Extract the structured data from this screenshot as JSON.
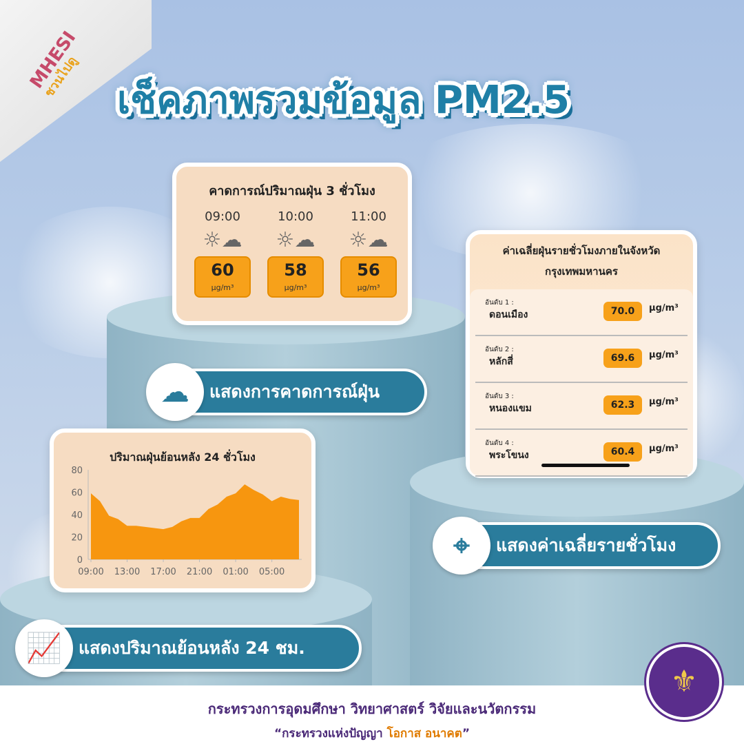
{
  "logo": {
    "line1": "MHESI",
    "line2": "ชวนไปดู"
  },
  "title": "เช็คภาพรวมข้อมูล PM2.5",
  "forecast": {
    "heading": "คาดการณ์ปริมาณฝุ่น 3 ชั่วโมง",
    "unit": "μg/m³",
    "items": [
      {
        "time": "09:00",
        "value": "60"
      },
      {
        "time": "10:00",
        "value": "58"
      },
      {
        "time": "11:00",
        "value": "56"
      }
    ],
    "icon": "sun-cloud-dust-icon"
  },
  "ranking": {
    "heading": "ค่าเฉลี่ยฝุ่นรายชั่วโมงภายในจังหวัด",
    "province": "กรุงเทพมหานคร",
    "unit": "μg/m³",
    "rows": [
      {
        "rank": "อันดับ 1 :",
        "district": "ดอนเมือง",
        "value": "70.0"
      },
      {
        "rank": "อันดับ 2 :",
        "district": "หลักสี่",
        "value": "69.6"
      },
      {
        "rank": "อันดับ 3 :",
        "district": "หนองแขม",
        "value": "62.3"
      },
      {
        "rank": "อันดับ 4 :",
        "district": "พระโขนง",
        "value": "60.4"
      }
    ]
  },
  "chart_data": {
    "type": "area",
    "title": "ปริมาณฝุ่นย้อนหลัง 24 ชั่วโมง",
    "xlabel": "",
    "ylabel": "",
    "x": [
      "09:00",
      "10:00",
      "11:00",
      "12:00",
      "13:00",
      "14:00",
      "15:00",
      "16:00",
      "17:00",
      "18:00",
      "19:00",
      "20:00",
      "21:00",
      "22:00",
      "23:00",
      "00:00",
      "01:00",
      "02:00",
      "03:00",
      "04:00",
      "05:00",
      "06:00",
      "07:00",
      "08:00"
    ],
    "values": [
      59,
      52,
      39,
      36,
      30,
      30,
      29,
      28,
      27,
      29,
      34,
      37,
      37,
      45,
      49,
      56,
      59,
      67,
      62,
      58,
      52,
      56,
      54,
      53
    ],
    "xticks": [
      "09:00",
      "13:00",
      "17:00",
      "21:00",
      "01:00",
      "05:00"
    ],
    "yticks": [
      "0",
      "20",
      "40",
      "60",
      "80"
    ],
    "ylim": [
      0,
      80
    ],
    "grid": false,
    "color": "#f7960f"
  },
  "labels": {
    "forecast": "แสดงการคาดการณ์ฝุ่น",
    "average": "แสดงค่าเฉลี่ยรายชั่วโมง",
    "history": "แสดงปริมาณย้อนหลัง 24 ชม."
  },
  "footer": {
    "ministry": "กระทรวงการอุดมศึกษา วิทยาศาสตร์ วิจัยและนวัตกรรม",
    "slogan_open": "“กระทรวงแห่งปัญญา ",
    "slogan_highlight": "โอกาส อนาคต",
    "slogan_close": "”"
  },
  "colors": {
    "accent": "#f7a11a",
    "brand": "#2a7c9c",
    "footer_text": "#4b2a78"
  }
}
